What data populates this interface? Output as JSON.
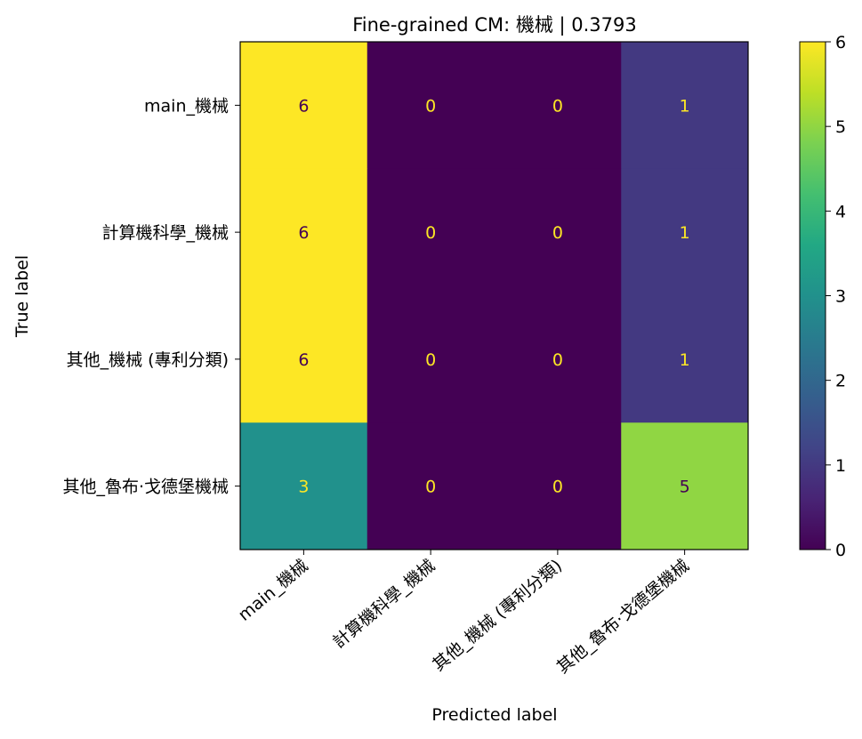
{
  "chart_data": {
    "type": "heatmap",
    "title": "Fine-grained CM: 機械 | 0.3793",
    "xlabel": "Predicted label",
    "ylabel": "True label",
    "x_categories": [
      "main_機械",
      "計算機科學_機械",
      "其他_機械 (專利分類)",
      "其他_魯布·戈德堡機械"
    ],
    "y_categories": [
      "main_機械",
      "計算機科學_機械",
      "其他_機械 (專利分類)",
      "其他_魯布·戈德堡機械"
    ],
    "matrix": [
      [
        6,
        0,
        0,
        1
      ],
      [
        6,
        0,
        0,
        1
      ],
      [
        6,
        0,
        0,
        1
      ],
      [
        3,
        0,
        0,
        5
      ]
    ],
    "colorbar": {
      "range": [
        0,
        6
      ],
      "ticks": [
        "0",
        "1",
        "2",
        "3",
        "4",
        "5",
        "6"
      ],
      "colormap": "viridis"
    },
    "colors": {
      "low": "#440154",
      "high": "#fde725",
      "text_on_dark": "#fde725",
      "text_on_light": "#440154"
    }
  }
}
